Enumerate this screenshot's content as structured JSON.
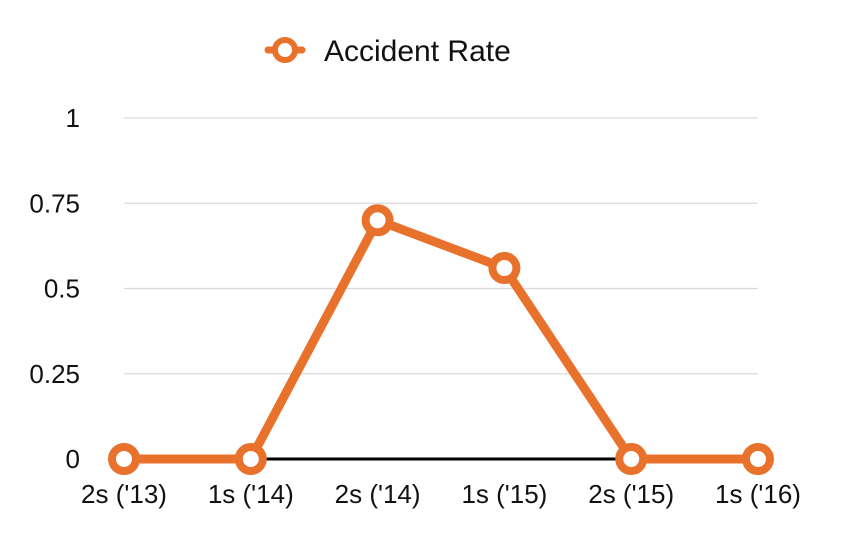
{
  "chart_data": {
    "type": "line",
    "categories": [
      "2s ('13)",
      "1s ('14)",
      "2s ('14)",
      "1s ('15)",
      "2s ('15)",
      "1s ('16)"
    ],
    "series": [
      {
        "name": "Accident Rate",
        "values": [
          0,
          0,
          0.7,
          0.56,
          0,
          0
        ],
        "color": "#E8722C"
      }
    ],
    "ylim": [
      0,
      1
    ],
    "yticks": [
      0,
      0.25,
      0.5,
      0.75,
      1
    ],
    "ytick_labels": [
      "0",
      "0.25",
      "0.5",
      "0.75",
      "1"
    ],
    "grid": true,
    "legend": "top-center",
    "title": "",
    "xlabel": "",
    "ylabel": ""
  }
}
